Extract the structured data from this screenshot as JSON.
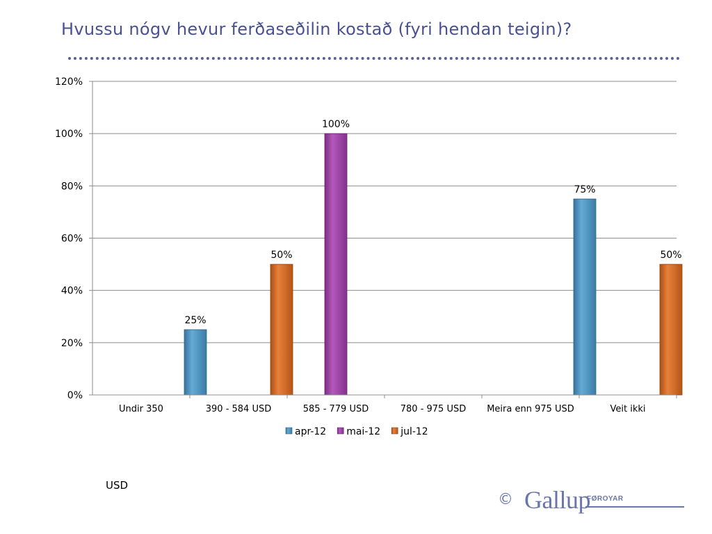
{
  "title": "Hvussu nógv hevur ferðaseðilin kostað (fyri hendan teigin)?",
  "footnote": "USD",
  "logo": {
    "copyright": "©",
    "brand": "Gallup",
    "sub": "FØROYAR"
  },
  "chart_data": {
    "type": "bar",
    "title": "",
    "xlabel": "",
    "ylabel": "",
    "ylim": [
      0,
      120
    ],
    "ytick_step": 20,
    "y_tick_suffix": "%",
    "grid": true,
    "legend_position": "bottom",
    "categories": [
      "Undir 350",
      "390 - 584 USD",
      "585 - 779 USD",
      "780 - 975 USD",
      "Meira enn 975 USD",
      "Veit ikki"
    ],
    "series": [
      {
        "name": "apr-12",
        "color": "#4a9bcf",
        "values": [
          null,
          25,
          null,
          null,
          null,
          75
        ]
      },
      {
        "name": "mai-12",
        "color": "#a63cb0",
        "values": [
          null,
          null,
          100,
          null,
          null,
          null
        ]
      },
      {
        "name": "jul-12",
        "color": "#e46a1a",
        "values": [
          null,
          50,
          null,
          null,
          null,
          50
        ]
      }
    ]
  }
}
